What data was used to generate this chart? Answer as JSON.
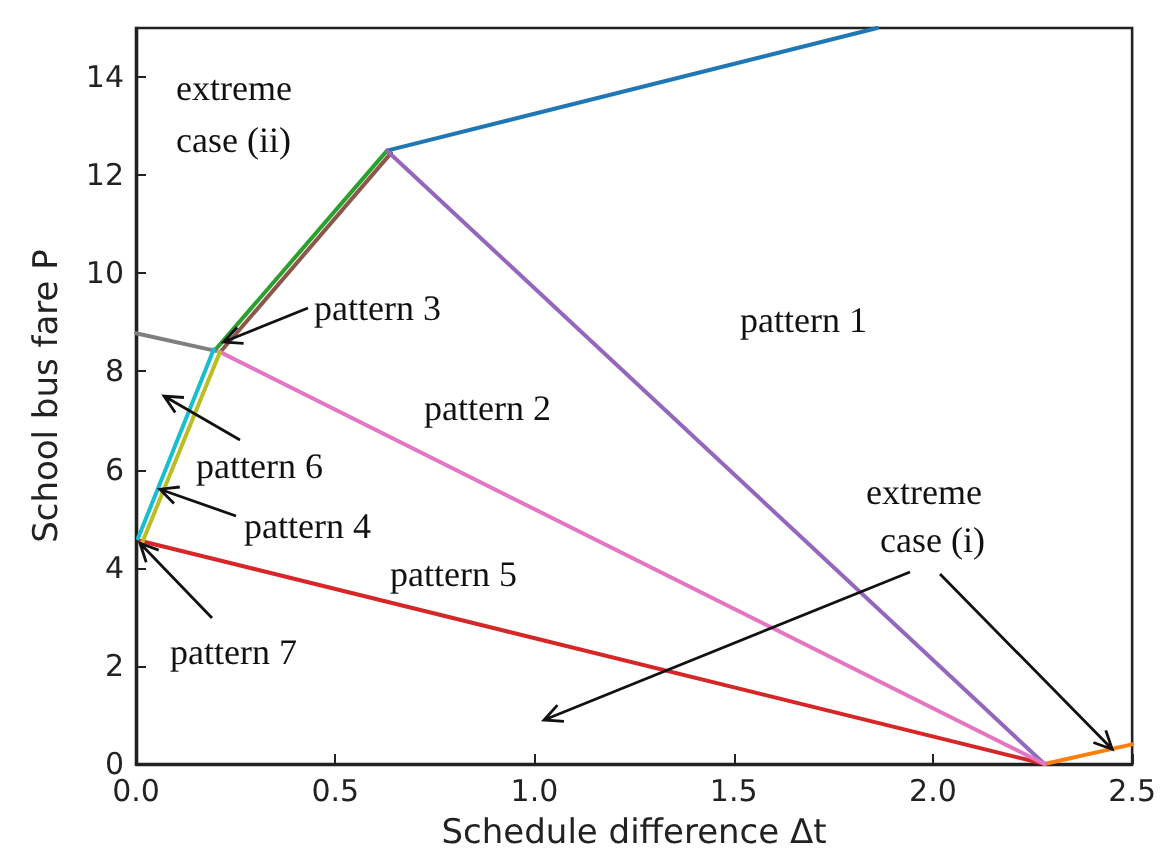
{
  "chart_data": {
    "type": "line",
    "xlabel": "Schedule difference Δt",
    "ylabel": "School bus fare P",
    "xlim": [
      0,
      2.5
    ],
    "ylim": [
      0,
      15
    ],
    "xticks": [
      {
        "value": 0,
        "label": "0.0"
      },
      {
        "value": 0.5,
        "label": "0.5"
      },
      {
        "value": 1,
        "label": "1.0"
      },
      {
        "value": 1.5,
        "label": "1.5"
      },
      {
        "value": 2,
        "label": "2.0"
      },
      {
        "value": 2.5,
        "label": "2.5"
      }
    ],
    "yticks": [
      0,
      2,
      4,
      6,
      8,
      10,
      12,
      14
    ],
    "grid": false,
    "marker": "none",
    "line_style": "solid",
    "series": [
      {
        "color": "#1f77b4",
        "x": [
          0.63,
          1.86
        ],
        "values": [
          12.5,
          15
        ]
      },
      {
        "color": "#ff7f0e",
        "x": [
          2.28,
          2.5
        ],
        "values": [
          0,
          0.4
        ]
      },
      {
        "color": "#8c564b",
        "x": [
          0.21,
          0.64
        ],
        "values": [
          8.38,
          12.45
        ]
      },
      {
        "color": "#2ca02c",
        "x": [
          0.2,
          0.63
        ],
        "values": [
          8.45,
          12.5
        ]
      },
      {
        "color": "#d62728",
        "x": [
          0.01,
          2.28
        ],
        "values": [
          4.55,
          0
        ]
      },
      {
        "color": "#9467bd",
        "x": [
          0.63,
          2.28
        ],
        "values": [
          12.5,
          0
        ]
      },
      {
        "color": "#e377c2",
        "x": [
          0.21,
          2.28
        ],
        "values": [
          8.4,
          0
        ]
      },
      {
        "color": "#7f7f7f",
        "x": [
          0,
          0.2
        ],
        "values": [
          8.78,
          8.42
        ]
      },
      {
        "color": "#bcbd22",
        "x": [
          0.015,
          0.21
        ],
        "values": [
          4.5,
          8.38
        ]
      },
      {
        "color": "#17becf",
        "x": [
          0.005,
          0.195
        ],
        "values": [
          4.6,
          8.45
        ]
      }
    ],
    "annotations": [
      "pattern 1",
      "pattern 2",
      {
        "text": "pattern 3",
        "x": 0.22,
        "y": 8.6
      },
      {
        "text": "pattern 4",
        "x": 0.06,
        "y": 5.6
      },
      "pattern 5",
      "pattern 6",
      {
        "text": "pattern 7",
        "x": 0.01,
        "y": 4.5
      },
      {
        "text": "extreme case (i)",
        "x": 2.45,
        "y": 0.3
      },
      "extreme case (ii)"
    ]
  }
}
